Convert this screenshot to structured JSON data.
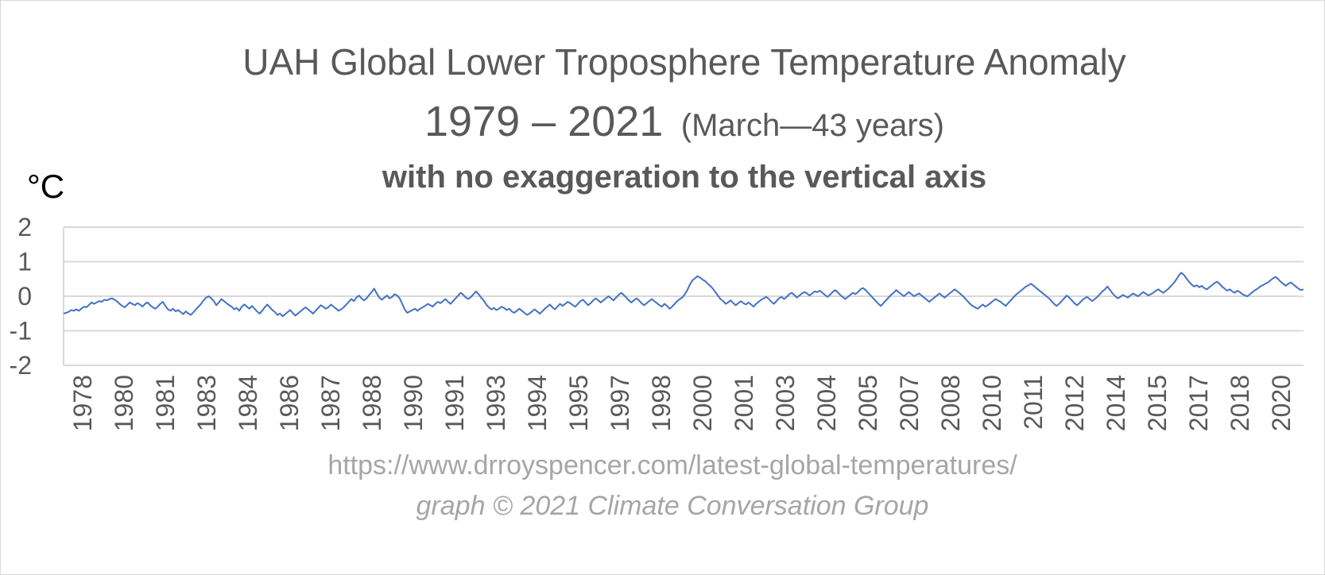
{
  "chart_data": {
    "type": "line",
    "title": "UAH Global Lower Troposphere Temperature Anomaly",
    "subtitle": "1979 – 2021",
    "subtitle_note": "(March—43 years)",
    "subtitle2": "with no exaggeration to the vertical axis",
    "ylabel": "°C",
    "ylim": [
      -2,
      2
    ],
    "yticks": [
      "2",
      "1",
      "0",
      "-1",
      "-2"
    ],
    "x_tick_labels": [
      "1978",
      "1980",
      "1981",
      "1983",
      "1984",
      "1986",
      "1987",
      "1988",
      "1990",
      "1991",
      "1993",
      "1994",
      "1995",
      "1997",
      "1998",
      "2000",
      "2001",
      "2003",
      "2004",
      "2005",
      "2007",
      "2008",
      "2010",
      "2011",
      "2012",
      "2014",
      "2015",
      "2017",
      "2018",
      "2020"
    ],
    "grid": true,
    "line_color": "#4472c4",
    "x_start": 1979.0,
    "x_step": 0.08333,
    "series": [
      {
        "values": [
          -0.5,
          -0.48,
          -0.45,
          -0.4,
          -0.42,
          -0.38,
          -0.42,
          -0.36,
          -0.3,
          -0.32,
          -0.25,
          -0.18,
          -0.22,
          -0.18,
          -0.14,
          -0.16,
          -0.1,
          -0.12,
          -0.08,
          -0.06,
          -0.1,
          -0.15,
          -0.22,
          -0.28,
          -0.32,
          -0.25,
          -0.18,
          -0.22,
          -0.26,
          -0.2,
          -0.24,
          -0.3,
          -0.22,
          -0.18,
          -0.26,
          -0.32,
          -0.36,
          -0.3,
          -0.22,
          -0.16,
          -0.28,
          -0.38,
          -0.42,
          -0.36,
          -0.44,
          -0.4,
          -0.46,
          -0.52,
          -0.44,
          -0.5,
          -0.54,
          -0.46,
          -0.38,
          -0.3,
          -0.22,
          -0.12,
          -0.04,
          0.0,
          -0.06,
          -0.14,
          -0.26,
          -0.18,
          -0.08,
          -0.14,
          -0.2,
          -0.26,
          -0.3,
          -0.38,
          -0.34,
          -0.42,
          -0.3,
          -0.24,
          -0.3,
          -0.36,
          -0.28,
          -0.36,
          -0.44,
          -0.5,
          -0.42,
          -0.32,
          -0.24,
          -0.32,
          -0.4,
          -0.46,
          -0.54,
          -0.5,
          -0.58,
          -0.52,
          -0.46,
          -0.4,
          -0.48,
          -0.56,
          -0.5,
          -0.44,
          -0.38,
          -0.32,
          -0.38,
          -0.44,
          -0.5,
          -0.42,
          -0.34,
          -0.26,
          -0.3,
          -0.36,
          -0.32,
          -0.24,
          -0.3,
          -0.36,
          -0.42,
          -0.38,
          -0.32,
          -0.24,
          -0.16,
          -0.08,
          -0.14,
          -0.04,
          0.02,
          -0.06,
          -0.12,
          -0.06,
          0.04,
          0.12,
          0.22,
          0.08,
          -0.04,
          -0.1,
          -0.04,
          0.02,
          -0.06,
          -0.02,
          0.06,
          0.02,
          -0.06,
          -0.22,
          -0.38,
          -0.48,
          -0.44,
          -0.4,
          -0.36,
          -0.42,
          -0.36,
          -0.32,
          -0.28,
          -0.22,
          -0.26,
          -0.3,
          -0.22,
          -0.16,
          -0.2,
          -0.14,
          -0.08,
          -0.16,
          -0.22,
          -0.14,
          -0.06,
          0.02,
          0.1,
          0.04,
          -0.04,
          -0.08,
          -0.02,
          0.06,
          0.14,
          0.06,
          -0.04,
          -0.12,
          -0.24,
          -0.32,
          -0.38,
          -0.34,
          -0.4,
          -0.36,
          -0.3,
          -0.34,
          -0.4,
          -0.36,
          -0.44,
          -0.48,
          -0.42,
          -0.36,
          -0.42,
          -0.48,
          -0.54,
          -0.5,
          -0.44,
          -0.38,
          -0.44,
          -0.5,
          -0.44,
          -0.36,
          -0.3,
          -0.24,
          -0.32,
          -0.38,
          -0.3,
          -0.22,
          -0.28,
          -0.22,
          -0.16,
          -0.2,
          -0.26,
          -0.3,
          -0.22,
          -0.14,
          -0.1,
          -0.18,
          -0.26,
          -0.2,
          -0.12,
          -0.06,
          -0.12,
          -0.18,
          -0.12,
          -0.06,
          0.0,
          -0.06,
          -0.12,
          -0.04,
          0.04,
          0.1,
          0.04,
          -0.04,
          -0.12,
          -0.18,
          -0.12,
          -0.06,
          -0.12,
          -0.2,
          -0.26,
          -0.2,
          -0.14,
          -0.08,
          -0.14,
          -0.2,
          -0.26,
          -0.3,
          -0.22,
          -0.28,
          -0.36,
          -0.3,
          -0.22,
          -0.14,
          -0.08,
          -0.04,
          0.06,
          0.18,
          0.34,
          0.46,
          0.52,
          0.58,
          0.54,
          0.48,
          0.44,
          0.36,
          0.3,
          0.22,
          0.12,
          0.02,
          -0.08,
          -0.14,
          -0.22,
          -0.18,
          -0.12,
          -0.2,
          -0.26,
          -0.2,
          -0.14,
          -0.2,
          -0.24,
          -0.18,
          -0.24,
          -0.3,
          -0.22,
          -0.16,
          -0.1,
          -0.06,
          -0.02,
          -0.08,
          -0.16,
          -0.22,
          -0.14,
          -0.06,
          -0.02,
          -0.08,
          -0.02,
          0.06,
          0.1,
          0.04,
          -0.04,
          0.02,
          0.08,
          0.12,
          0.08,
          0.02,
          0.08,
          0.14,
          0.12,
          0.16,
          0.1,
          0.04,
          -0.02,
          0.04,
          0.12,
          0.18,
          0.12,
          0.04,
          -0.02,
          -0.08,
          -0.02,
          0.04,
          0.1,
          0.06,
          0.12,
          0.2,
          0.24,
          0.18,
          0.1,
          0.02,
          -0.06,
          -0.14,
          -0.22,
          -0.28,
          -0.2,
          -0.12,
          -0.04,
          0.04,
          0.1,
          0.18,
          0.12,
          0.06,
          0.0,
          0.06,
          0.12,
          0.06,
          0.0,
          0.04,
          0.08,
          0.02,
          -0.04,
          -0.1,
          -0.16,
          -0.1,
          -0.04,
          0.02,
          0.08,
          0.02,
          -0.04,
          0.02,
          0.08,
          0.14,
          0.2,
          0.14,
          0.08,
          0.02,
          -0.06,
          -0.14,
          -0.22,
          -0.28,
          -0.32,
          -0.36,
          -0.3,
          -0.24,
          -0.3,
          -0.26,
          -0.2,
          -0.14,
          -0.08,
          -0.12,
          -0.16,
          -0.22,
          -0.28,
          -0.2,
          -0.12,
          -0.04,
          0.04,
          0.1,
          0.16,
          0.22,
          0.28,
          0.32,
          0.36,
          0.3,
          0.24,
          0.18,
          0.12,
          0.06,
          0.0,
          -0.06,
          -0.14,
          -0.22,
          -0.28,
          -0.22,
          -0.14,
          -0.06,
          0.02,
          -0.04,
          -0.12,
          -0.2,
          -0.26,
          -0.2,
          -0.12,
          -0.06,
          -0.02,
          -0.08,
          -0.14,
          -0.08,
          -0.02,
          0.06,
          0.14,
          0.2,
          0.28,
          0.18,
          0.08,
          0.0,
          -0.06,
          -0.02,
          0.04,
          0.0,
          -0.04,
          0.02,
          0.08,
          0.04,
          0.0,
          0.06,
          0.12,
          0.08,
          0.02,
          0.06,
          0.1,
          0.16,
          0.2,
          0.14,
          0.1,
          0.16,
          0.22,
          0.3,
          0.38,
          0.48,
          0.6,
          0.68,
          0.62,
          0.52,
          0.42,
          0.34,
          0.28,
          0.32,
          0.26,
          0.3,
          0.24,
          0.2,
          0.26,
          0.32,
          0.38,
          0.42,
          0.36,
          0.28,
          0.22,
          0.16,
          0.2,
          0.14,
          0.1,
          0.16,
          0.12,
          0.06,
          0.02,
          0.0,
          0.06,
          0.12,
          0.18,
          0.22,
          0.28,
          0.32,
          0.36,
          0.4,
          0.46,
          0.52,
          0.56,
          0.5,
          0.42,
          0.36,
          0.3,
          0.36,
          0.4,
          0.34,
          0.28,
          0.22,
          0.18,
          0.2
        ]
      }
    ]
  },
  "footer": {
    "source": "https://www.drroyspencer.com/latest-global-temperatures/",
    "credit": "graph © 2021 Climate Conversation Group"
  }
}
